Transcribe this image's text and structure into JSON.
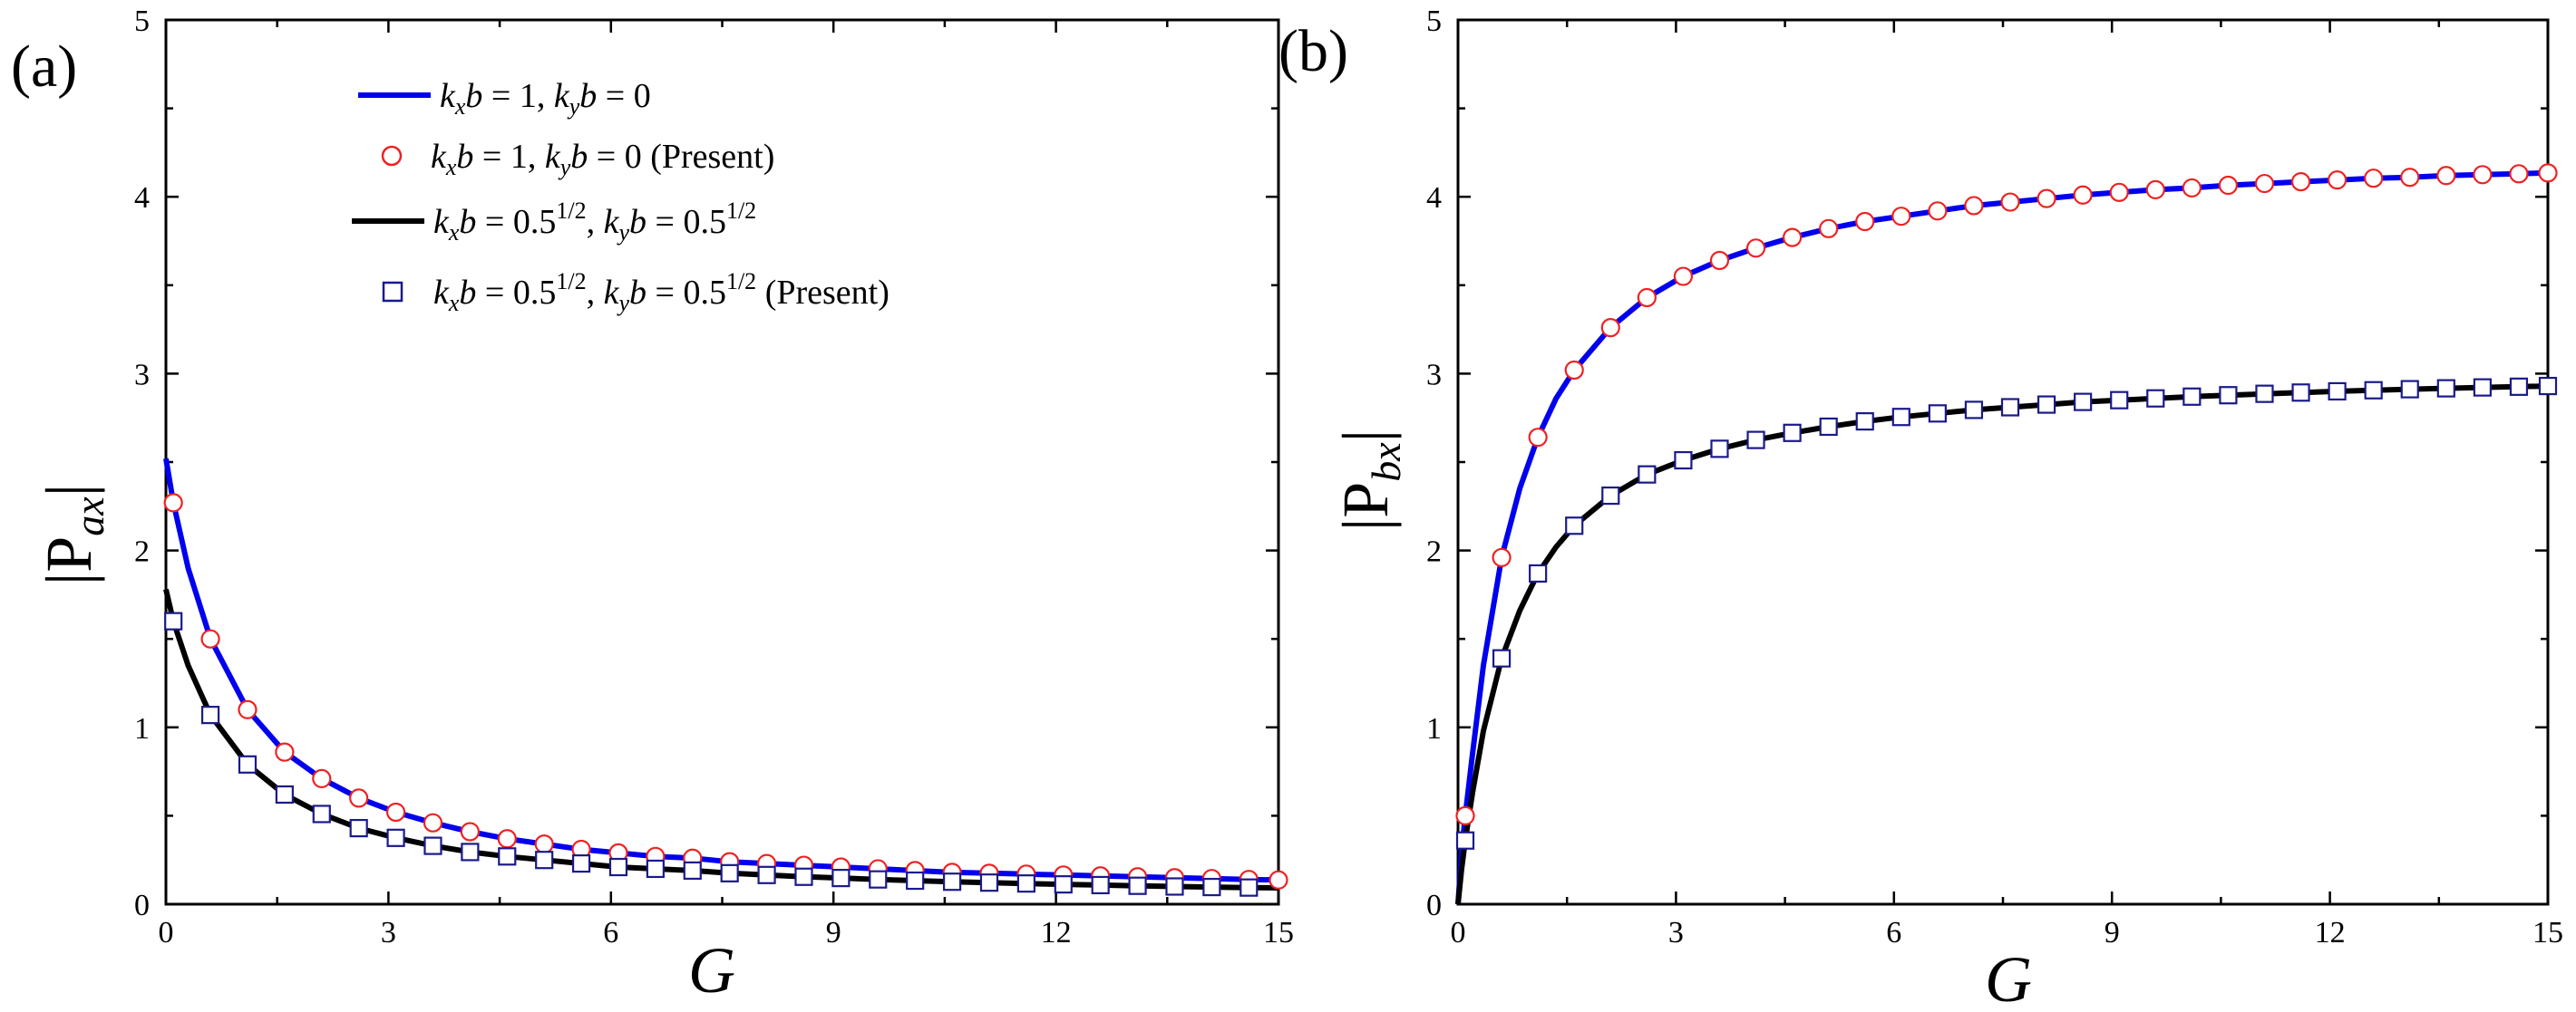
{
  "chart_data": [
    {
      "type": "line",
      "panel_label": "(a)",
      "xlabel": "G",
      "ylabel": "|P",
      "ylabel_sub": "ax",
      "ylabel_close": "|",
      "xlim": [
        0,
        15
      ],
      "ylim": [
        0,
        5
      ],
      "xticks": [
        0,
        3,
        6,
        9,
        12,
        15
      ],
      "yticks": [
        0,
        1,
        2,
        3,
        4,
        5
      ],
      "legend": {
        "placement": "top-center",
        "entries": [
          {
            "label": "k_x b = 1, k_y b = 0",
            "style": "line",
            "color": "#0000ee"
          },
          {
            "label": "k_x b = 1, k_y b = 0 (Present)",
            "style": "circle",
            "color": "#ee2222"
          },
          {
            "label": "k_x b = 0.5^{1/2}, k_y b = 0.5^{1/2}",
            "style": "line",
            "color": "#000000"
          },
          {
            "label": "k_x b = 0.5^{1/2}, k_y b = 0.5^{1/2} (Present)",
            "style": "square",
            "color": "#1a1a8a"
          }
        ]
      },
      "series": [
        {
          "name": "k_x b = 1, k_y b = 0",
          "kind": "line",
          "color": "#0000ee",
          "x": [
            0,
            0.1,
            0.3,
            0.6,
            1.1,
            1.6,
            2.1,
            2.6,
            3.1,
            3.6,
            4.1,
            4.6,
            5.1,
            5.6,
            6.1,
            6.6,
            7.1,
            7.6,
            8.1,
            8.6,
            9.1,
            9.6,
            10.1,
            10.6,
            11.1,
            11.6,
            12.1,
            12.6,
            13.1,
            13.6,
            14.1,
            14.6,
            15
          ],
          "y": [
            2.52,
            2.27,
            1.9,
            1.5,
            1.1,
            0.86,
            0.71,
            0.6,
            0.52,
            0.46,
            0.41,
            0.37,
            0.34,
            0.31,
            0.29,
            0.27,
            0.26,
            0.24,
            0.23,
            0.22,
            0.21,
            0.2,
            0.19,
            0.18,
            0.175,
            0.17,
            0.165,
            0.16,
            0.155,
            0.15,
            0.145,
            0.14,
            0.137
          ]
        },
        {
          "name": "k_x b = 1, k_y b = 0 (Present)",
          "kind": "circle",
          "color": "#ee2222",
          "x": [
            0.1,
            0.6,
            1.1,
            1.6,
            2.1,
            2.6,
            3.1,
            3.6,
            4.1,
            4.6,
            5.1,
            5.6,
            6.1,
            6.6,
            7.1,
            7.6,
            8.1,
            8.6,
            9.1,
            9.6,
            10.1,
            10.6,
            11.1,
            11.6,
            12.1,
            12.6,
            13.1,
            13.6,
            14.1,
            14.6,
            15
          ],
          "y": [
            2.27,
            1.5,
            1.1,
            0.86,
            0.71,
            0.6,
            0.52,
            0.46,
            0.41,
            0.37,
            0.34,
            0.31,
            0.29,
            0.27,
            0.26,
            0.24,
            0.23,
            0.22,
            0.21,
            0.2,
            0.19,
            0.18,
            0.175,
            0.17,
            0.165,
            0.16,
            0.155,
            0.15,
            0.145,
            0.14,
            0.137
          ]
        },
        {
          "name": "k_x b = 0.5^{1/2}, k_y b = 0.5^{1/2}",
          "kind": "line",
          "color": "#000000",
          "x": [
            0,
            0.1,
            0.3,
            0.6,
            1.1,
            1.6,
            2.1,
            2.6,
            3.1,
            3.6,
            4.1,
            4.6,
            5.1,
            5.6,
            6.1,
            6.6,
            7.1,
            7.6,
            8.1,
            8.6,
            9.1,
            9.6,
            10.1,
            10.6,
            11.1,
            11.6,
            12.1,
            12.6,
            13.1,
            13.6,
            14.1,
            14.6,
            15
          ],
          "y": [
            1.78,
            1.6,
            1.35,
            1.07,
            0.79,
            0.62,
            0.51,
            0.43,
            0.375,
            0.33,
            0.295,
            0.27,
            0.25,
            0.23,
            0.21,
            0.2,
            0.19,
            0.175,
            0.165,
            0.155,
            0.148,
            0.14,
            0.133,
            0.127,
            0.122,
            0.117,
            0.112,
            0.108,
            0.104,
            0.1,
            0.097,
            0.094,
            0.092
          ]
        },
        {
          "name": "k_x b = 0.5^{1/2}, k_y b = 0.5^{1/2} (Present)",
          "kind": "square",
          "color": "#1a1a8a",
          "x": [
            0.1,
            0.6,
            1.1,
            1.6,
            2.1,
            2.6,
            3.1,
            3.6,
            4.1,
            4.6,
            5.1,
            5.6,
            6.1,
            6.6,
            7.1,
            7.6,
            8.1,
            8.6,
            9.1,
            9.6,
            10.1,
            10.6,
            11.1,
            11.6,
            12.1,
            12.6,
            13.1,
            13.6,
            14.1,
            14.6
          ],
          "y": [
            1.6,
            1.07,
            0.79,
            0.62,
            0.51,
            0.43,
            0.375,
            0.33,
            0.295,
            0.27,
            0.25,
            0.23,
            0.21,
            0.2,
            0.19,
            0.175,
            0.165,
            0.155,
            0.148,
            0.14,
            0.133,
            0.127,
            0.122,
            0.117,
            0.112,
            0.108,
            0.104,
            0.1,
            0.097,
            0.094
          ]
        }
      ]
    },
    {
      "type": "line",
      "panel_label": "(b)",
      "xlabel": "G",
      "ylabel": "|P",
      "ylabel_sub": "bx",
      "ylabel_close": "|",
      "xlim": [
        0,
        15
      ],
      "ylim": [
        0,
        5
      ],
      "xticks": [
        0,
        3,
        6,
        9,
        12,
        15
      ],
      "yticks": [
        0,
        1,
        2,
        3,
        4,
        5
      ],
      "series": [
        {
          "name": "k_x b = 1, k_y b = 0",
          "kind": "line",
          "color": "#0000ee",
          "x": [
            0,
            0.05,
            0.1,
            0.2,
            0.35,
            0.6,
            0.85,
            1.1,
            1.35,
            1.6,
            2.1,
            2.6,
            3.1,
            3.6,
            4.1,
            4.6,
            5.1,
            5.6,
            6.1,
            6.6,
            7.1,
            7.6,
            8.1,
            8.6,
            9.1,
            9.6,
            10.1,
            10.6,
            11.1,
            11.6,
            12.1,
            12.6,
            13.1,
            13.6,
            14.1,
            14.6,
            15
          ],
          "y": [
            0,
            0.3,
            0.5,
            0.85,
            1.35,
            1.96,
            2.35,
            2.64,
            2.86,
            3.02,
            3.26,
            3.43,
            3.55,
            3.64,
            3.71,
            3.77,
            3.82,
            3.86,
            3.89,
            3.92,
            3.95,
            3.97,
            3.99,
            4.01,
            4.025,
            4.04,
            4.05,
            4.065,
            4.075,
            4.085,
            4.095,
            4.105,
            4.11,
            4.12,
            4.125,
            4.13,
            4.135
          ]
        },
        {
          "name": "k_x b = 1, k_y b = 0 (Present)",
          "kind": "circle",
          "color": "#ee2222",
          "x": [
            0.1,
            0.6,
            1.1,
            1.6,
            2.1,
            2.6,
            3.1,
            3.6,
            4.1,
            4.6,
            5.1,
            5.6,
            6.1,
            6.6,
            7.1,
            7.6,
            8.1,
            8.6,
            9.1,
            9.6,
            10.1,
            10.6,
            11.1,
            11.6,
            12.1,
            12.6,
            13.1,
            13.6,
            14.1,
            14.6,
            15
          ],
          "y": [
            0.5,
            1.96,
            2.64,
            3.02,
            3.26,
            3.43,
            3.55,
            3.64,
            3.71,
            3.77,
            3.82,
            3.86,
            3.89,
            3.92,
            3.95,
            3.97,
            3.99,
            4.01,
            4.025,
            4.04,
            4.05,
            4.065,
            4.075,
            4.085,
            4.095,
            4.105,
            4.11,
            4.12,
            4.125,
            4.13,
            4.135
          ]
        },
        {
          "name": "k_x b = 0.5^{1/2}, k_y b = 0.5^{1/2}",
          "kind": "line",
          "color": "#000000",
          "x": [
            0,
            0.05,
            0.1,
            0.2,
            0.35,
            0.6,
            0.85,
            1.1,
            1.35,
            1.6,
            2.1,
            2.6,
            3.1,
            3.6,
            4.1,
            4.6,
            5.1,
            5.6,
            6.1,
            6.6,
            7.1,
            7.6,
            8.1,
            8.6,
            9.1,
            9.6,
            10.1,
            10.6,
            11.1,
            11.6,
            12.1,
            12.6,
            13.1,
            13.6,
            14.1,
            14.6,
            15
          ],
          "y": [
            0,
            0.2,
            0.36,
            0.63,
            0.98,
            1.39,
            1.66,
            1.87,
            2.02,
            2.14,
            2.31,
            2.43,
            2.51,
            2.575,
            2.625,
            2.665,
            2.7,
            2.73,
            2.755,
            2.775,
            2.795,
            2.81,
            2.825,
            2.84,
            2.85,
            2.86,
            2.87,
            2.878,
            2.886,
            2.893,
            2.9,
            2.906,
            2.912,
            2.917,
            2.922,
            2.926,
            2.93
          ]
        },
        {
          "name": "k_x b = 0.5^{1/2}, k_y b = 0.5^{1/2} (Present)",
          "kind": "square",
          "color": "#1a1a8a",
          "x": [
            0.1,
            0.6,
            1.1,
            1.6,
            2.1,
            2.6,
            3.1,
            3.6,
            4.1,
            4.6,
            5.1,
            5.6,
            6.1,
            6.6,
            7.1,
            7.6,
            8.1,
            8.6,
            9.1,
            9.6,
            10.1,
            10.6,
            11.1,
            11.6,
            12.1,
            12.6,
            13.1,
            13.6,
            14.1,
            14.6,
            15
          ],
          "y": [
            0.36,
            1.39,
            1.87,
            2.14,
            2.31,
            2.43,
            2.51,
            2.575,
            2.625,
            2.665,
            2.7,
            2.73,
            2.755,
            2.775,
            2.795,
            2.81,
            2.825,
            2.84,
            2.85,
            2.86,
            2.87,
            2.878,
            2.886,
            2.893,
            2.9,
            2.906,
            2.912,
            2.917,
            2.922,
            2.926,
            2.93
          ]
        }
      ]
    }
  ]
}
